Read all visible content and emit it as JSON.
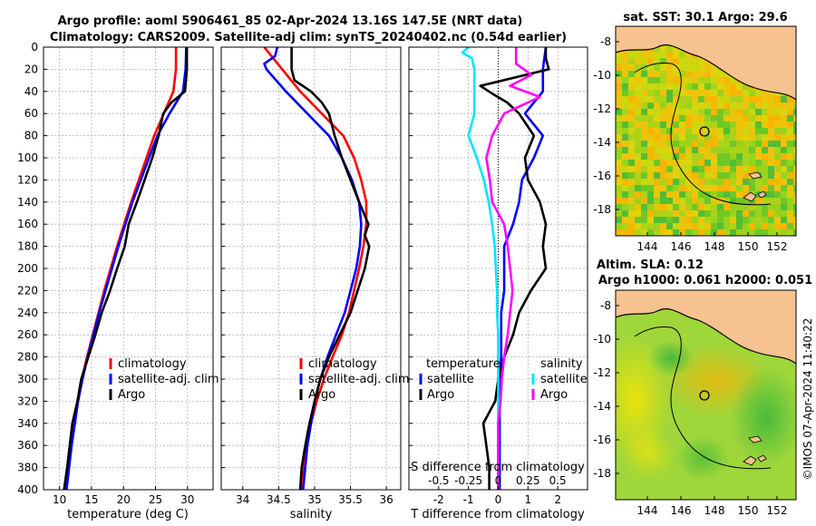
{
  "title": {
    "line1": "Argo profile: aoml 5906461_85 02-Apr-2024 13.16S 147.5E (NRT data)",
    "line2": "Climatology: CARS2009. Satellite-adj clim: synTS_20240402.nc (0.54d earlier)"
  },
  "colors": {
    "climatology": "#ff0000",
    "satellite": "#0000ff",
    "argo": "#000000",
    "sal_satellite": "#00e5ff",
    "sal_argo": "#ff00ff",
    "land": "#f5c290"
  },
  "chart_data": [
    {
      "type": "line",
      "name": "temperature",
      "xlabel": "temperature (deg C)",
      "ylabel": "",
      "xlim": [
        7.5,
        34
      ],
      "ylim": [
        0,
        400
      ],
      "xticks": [
        10,
        15,
        20,
        25,
        30
      ],
      "yticks": [
        0,
        20,
        40,
        60,
        80,
        100,
        120,
        140,
        160,
        180,
        200,
        220,
        240,
        260,
        280,
        300,
        320,
        340,
        360,
        380,
        400
      ],
      "legend": [
        "climatology",
        "satellite-adj. clim",
        "Argo"
      ],
      "legend_position": "lower-right",
      "series": [
        {
          "name": "climatology",
          "depth": [
            0,
            20,
            40,
            60,
            80,
            100,
            120,
            140,
            160,
            180,
            200,
            220,
            240,
            260,
            280,
            300,
            320,
            340,
            360,
            380,
            400
          ],
          "values": [
            28.2,
            28.2,
            27.8,
            26.3,
            24.8,
            23.6,
            22.4,
            21.2,
            20.1,
            19.0,
            18.0,
            17.0,
            16.1,
            15.2,
            14.3,
            13.5,
            12.9,
            12.3,
            11.8,
            11.4,
            11.0
          ]
        },
        {
          "name": "satellite-adj. clim",
          "depth": [
            0,
            20,
            40,
            60,
            80,
            100,
            120,
            140,
            160,
            180,
            200,
            220,
            240,
            260,
            280,
            300,
            320,
            340,
            360,
            380,
            400
          ],
          "values": [
            29.8,
            29.7,
            29.3,
            27.2,
            25.3,
            24.0,
            22.7,
            21.4,
            20.3,
            19.2,
            18.2,
            17.2,
            16.2,
            15.3,
            14.4,
            13.6,
            12.9,
            12.4,
            11.9,
            11.5,
            11.1
          ]
        },
        {
          "name": "Argo",
          "depth": [
            0,
            20,
            40,
            50,
            60,
            80,
            100,
            120,
            140,
            160,
            180,
            200,
            220,
            240,
            260,
            280,
            300,
            320,
            340,
            360,
            380,
            400
          ],
          "values": [
            29.9,
            29.9,
            29.6,
            27.5,
            26.2,
            25.5,
            24.5,
            23.3,
            22.1,
            20.8,
            20.2,
            19.0,
            17.9,
            16.6,
            15.6,
            14.5,
            13.4,
            12.8,
            12.0,
            11.6,
            11.2,
            10.7
          ]
        }
      ]
    },
    {
      "type": "line",
      "name": "salinity",
      "xlabel": "salinity",
      "ylabel": "",
      "xlim": [
        33.7,
        36.2
      ],
      "ylim": [
        0,
        400
      ],
      "xticks": [
        34,
        34.5,
        35,
        35.5,
        36
      ],
      "legend": [
        "climatology",
        "satellite-adj. clim",
        "Argo"
      ],
      "legend_position": "lower-right",
      "series": [
        {
          "name": "climatology",
          "depth": [
            0,
            20,
            40,
            60,
            80,
            100,
            120,
            140,
            160,
            180,
            200,
            220,
            240,
            260,
            280,
            300,
            320,
            340,
            360,
            380,
            400
          ],
          "values": [
            34.3,
            34.55,
            34.8,
            35.1,
            35.4,
            35.55,
            35.65,
            35.72,
            35.72,
            35.68,
            35.62,
            35.55,
            35.48,
            35.38,
            35.25,
            35.13,
            35.03,
            34.95,
            34.9,
            34.85,
            34.82
          ]
        },
        {
          "name": "satellite-adj. clim",
          "depth": [
            0,
            8,
            15,
            20,
            40,
            60,
            80,
            100,
            120,
            140,
            160,
            180,
            200,
            220,
            240,
            260,
            280,
            300,
            320,
            340,
            360,
            380,
            400
          ],
          "values": [
            34.48,
            34.45,
            34.3,
            34.33,
            34.6,
            34.9,
            35.2,
            35.38,
            35.52,
            35.62,
            35.65,
            35.63,
            35.58,
            35.5,
            35.42,
            35.3,
            35.18,
            35.08,
            35.0,
            34.95,
            34.9,
            34.87,
            34.84
          ]
        },
        {
          "name": "Argo",
          "depth": [
            0,
            5,
            20,
            30,
            40,
            50,
            60,
            80,
            100,
            120,
            140,
            160,
            170,
            180,
            200,
            220,
            240,
            260,
            280,
            300,
            320,
            340,
            360,
            380,
            400
          ],
          "values": [
            34.68,
            34.68,
            34.68,
            34.72,
            34.95,
            35.1,
            35.2,
            35.28,
            35.38,
            35.5,
            35.62,
            35.75,
            35.7,
            35.76,
            35.7,
            35.6,
            35.5,
            35.35,
            35.2,
            35.08,
            35.0,
            34.93,
            34.87,
            34.82,
            34.8
          ]
        }
      ]
    },
    {
      "type": "line",
      "name": "difference from climatology",
      "xlabel": "T difference from climatology",
      "xlabel_top": "S difference from climatology",
      "xlim": [
        -3,
        3
      ],
      "ylim": [
        0,
        400
      ],
      "xticks": [
        -2,
        -1,
        0,
        1,
        2
      ],
      "s_ticks": [
        -0.5,
        -0.25,
        0,
        0.25,
        0.5
      ],
      "s_tick_labels": [
        "-0.5",
        "-0.25",
        "0",
        "0.25",
        "0.5"
      ],
      "legend_temperature": [
        "temperature",
        "satellite",
        "Argo"
      ],
      "legend_salinity": [
        "salinity",
        "satellite",
        "Argo"
      ],
      "series": [
        {
          "name": "T satellite",
          "depth": [
            0,
            20,
            40,
            60,
            80,
            100,
            120,
            140,
            160,
            180,
            200,
            220,
            240,
            260,
            280,
            300,
            320,
            340,
            360,
            380,
            400
          ],
          "values": [
            1.6,
            1.5,
            1.5,
            0.9,
            1.5,
            1.2,
            0.8,
            0.7,
            0.5,
            0.2,
            0.2,
            0.2,
            0.1,
            0.1,
            0.1,
            0.05,
            0.05,
            0.05,
            0.05,
            0.05,
            0.05
          ]
        },
        {
          "name": "T Argo",
          "depth": [
            0,
            10,
            20,
            35,
            42,
            50,
            60,
            80,
            100,
            120,
            140,
            160,
            180,
            200,
            220,
            240,
            260,
            280,
            300,
            320,
            340,
            360,
            380,
            400
          ],
          "values": [
            1.6,
            1.6,
            1.7,
            -0.6,
            -0.2,
            0.3,
            0.7,
            1.2,
            0.9,
            1.0,
            1.4,
            1.6,
            1.5,
            1.6,
            1.1,
            0.7,
            0.5,
            0.2,
            0.0,
            -0.1,
            -0.5,
            -0.4,
            -0.3,
            -0.3
          ]
        },
        {
          "name": "S satellite",
          "depth": [
            0,
            5,
            10,
            20,
            40,
            60,
            80,
            100,
            120,
            140,
            160,
            180,
            200,
            220,
            240,
            260,
            280,
            300,
            320,
            340,
            360,
            380,
            400
          ],
          "values": [
            -0.25,
            -0.3,
            -0.22,
            -0.2,
            -0.2,
            -0.2,
            -0.25,
            -0.18,
            -0.12,
            -0.08,
            -0.05,
            -0.03,
            -0.02,
            -0.01,
            -0.01,
            0.0,
            0.0,
            0.0,
            0.0,
            0.0,
            0.0,
            0.0,
            0.0
          ]
        },
        {
          "name": "S Argo",
          "depth": [
            0,
            15,
            25,
            35,
            45,
            60,
            80,
            100,
            120,
            140,
            160,
            180,
            200,
            220,
            240,
            260,
            280,
            300,
            320,
            340,
            360,
            380,
            400
          ],
          "values": [
            0.15,
            0.15,
            0.28,
            0.1,
            0.35,
            0.05,
            -0.05,
            -0.1,
            -0.07,
            -0.05,
            0.05,
            0.08,
            0.1,
            0.12,
            0.1,
            0.08,
            0.05,
            0.03,
            0.02,
            0.0,
            0.0,
            0.0,
            0.0
          ]
        }
      ]
    }
  ],
  "maps": {
    "sst": {
      "title": "sat. SST: 30.1 Argo: 29.6",
      "lon_ticks": [
        "144",
        "146",
        "148",
        "150",
        "152"
      ],
      "lat_ticks": [
        "-8",
        "-10",
        "-12",
        "-14",
        "-16",
        "-18"
      ]
    },
    "sla": {
      "title1": "Altim. SLA: 0.12",
      "title2": "Argo h1000: 0.061 h2000: 0.051",
      "lon_ticks": [
        "144",
        "146",
        "148",
        "150",
        "152"
      ],
      "lat_ticks": [
        "-8",
        "-10",
        "-12",
        "-14",
        "-16",
        "-18"
      ]
    }
  },
  "credit": "©IMOS 07-Apr-2024 11:40:22"
}
